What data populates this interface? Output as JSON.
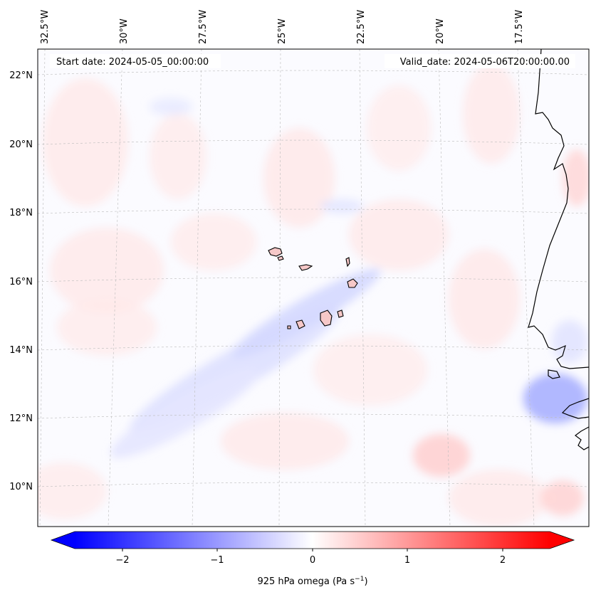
{
  "map": {
    "start_label": "Start date: 2024-05-05_00:00:00",
    "valid_label": "Valid_date: 2024-05-06T20:00:00.00",
    "lon_labels": [
      "32.5°W",
      "30°W",
      "27.5°W",
      "25°W",
      "22.5°W",
      "20°W",
      "17.5°W"
    ],
    "lat_labels": [
      "22°N",
      "20°N",
      "18°N",
      "16°N",
      "14°N",
      "12°N",
      "10°N"
    ],
    "field": "925 hPa omega",
    "extent": {
      "lon_min": -33.0,
      "lon_max": -15.3,
      "lat_min": 8.8,
      "lat_max": 22.8
    }
  },
  "colorbar": {
    "label": "925 hPa omega (Pa s",
    "label_sup": "−1",
    "label_close": ")",
    "ticks": [
      "−2",
      "−1",
      "0",
      "1",
      "2"
    ],
    "tick_values": [
      -2,
      -1,
      0,
      1,
      2
    ],
    "vmin": -2.5,
    "vmax": 2.5,
    "cmap": "bwr",
    "color_min": "#0000ff",
    "color_mid": "#ffffff",
    "color_max": "#ff0000"
  }
}
